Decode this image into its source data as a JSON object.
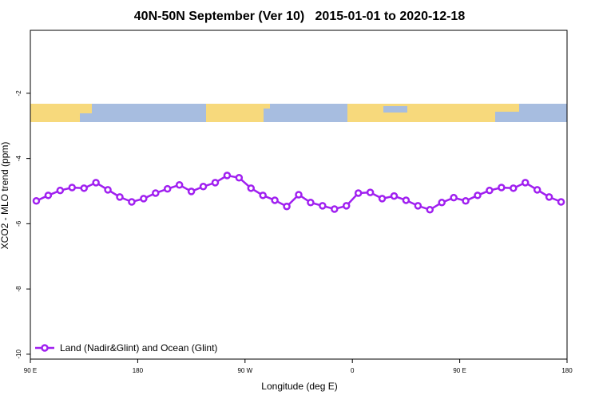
{
  "chart_data": {
    "type": "line",
    "title": "40N-50N September (Ver 10)   2015-01-01 to 2020-12-18",
    "xlabel": "Longitude (deg E)",
    "ylabel": "XCO2 - MLO trend (ppm)",
    "x": [
      95,
      105,
      115,
      125,
      135,
      145,
      155,
      165,
      175,
      185,
      195,
      205,
      215,
      225,
      235,
      245,
      255,
      265,
      275,
      285,
      295,
      305,
      315,
      325,
      335,
      345,
      355,
      365,
      375,
      385,
      395,
      405,
      415,
      425,
      435,
      445,
      455,
      465,
      475,
      485,
      495,
      505,
      515,
      525,
      535
    ],
    "series": [
      {
        "name": "Land (Nadir&Glint) and Ocean (Glint)",
        "color": "#a020f0",
        "values": [
          -5.3,
          -5.13,
          -4.98,
          -4.89,
          -4.91,
          -4.74,
          -4.96,
          -5.18,
          -5.33,
          -5.23,
          -5.06,
          -4.93,
          -4.81,
          -5.01,
          -4.86,
          -4.74,
          -4.52,
          -4.59,
          -4.91,
          -5.13,
          -5.28,
          -5.47,
          -5.11,
          -5.35,
          -5.45,
          -5.55,
          -5.45,
          -5.06,
          -5.04,
          -5.23,
          -5.15,
          -5.28,
          -5.45,
          -5.57,
          -5.35,
          -5.2,
          -5.3,
          -5.13,
          -4.98,
          -4.89,
          -4.91,
          -4.74,
          -4.96,
          -5.18,
          -5.33
        ]
      }
    ],
    "xlim": [
      90,
      540
    ],
    "xticks": [
      {
        "value": 90,
        "label": "90 E"
      },
      {
        "value": 180,
        "label": "180"
      },
      {
        "value": 270,
        "label": "90 W"
      },
      {
        "value": 360,
        "label": "0"
      },
      {
        "value": 450,
        "label": "90 E"
      },
      {
        "value": 540,
        "label": "180"
      }
    ],
    "ylim": [
      -10.15,
      -0.07
    ],
    "yticks": [
      -2,
      -4,
      -6,
      -8,
      -10
    ],
    "legend": "bottom-left"
  }
}
